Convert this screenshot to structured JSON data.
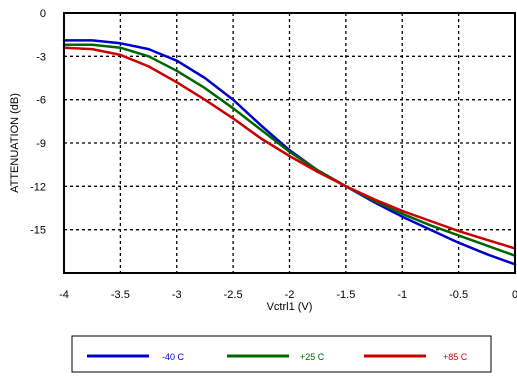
{
  "chart_data": {
    "type": "line",
    "xlabel": "Vctrl1 (V)",
    "ylabel": "ATTENUATION (dB)",
    "xlim": [
      -4,
      0
    ],
    "ylim": [
      -18,
      0
    ],
    "x_ticks": [
      "-4",
      "-3.5",
      "-3",
      "-2.5",
      "-2",
      "-1.5",
      "-1",
      "-0.5",
      "0"
    ],
    "y_ticks": [
      "0",
      "-3",
      "-6",
      "-9",
      "-12",
      "-15"
    ],
    "grid": true,
    "legend_position": "bottom",
    "series": [
      {
        "name": "-40 C",
        "color": "#0000cc",
        "x": [
          -4.0,
          -3.75,
          -3.5,
          -3.25,
          -3.0,
          -2.75,
          -2.5,
          -2.25,
          -2.0,
          -1.75,
          -1.5,
          -1.25,
          -1.0,
          -0.75,
          -0.5,
          -0.25,
          0.0
        ],
        "y": [
          -1.9,
          -1.9,
          -2.1,
          -2.5,
          -3.3,
          -4.5,
          -6.0,
          -7.8,
          -9.5,
          -10.9,
          -12.0,
          -13.1,
          -14.1,
          -15.0,
          -15.9,
          -16.7,
          -17.4
        ]
      },
      {
        "name": "+25 C",
        "color": "#006600",
        "x": [
          -4.0,
          -3.75,
          -3.5,
          -3.25,
          -3.0,
          -2.75,
          -2.5,
          -2.25,
          -2.0,
          -1.75,
          -1.5,
          -1.25,
          -1.0,
          -0.75,
          -0.5,
          -0.25,
          0.0
        ],
        "y": [
          -2.2,
          -2.2,
          -2.4,
          -3.0,
          -4.0,
          -5.2,
          -6.6,
          -8.1,
          -9.6,
          -10.9,
          -12.0,
          -13.0,
          -13.9,
          -14.7,
          -15.4,
          -16.1,
          -16.8
        ]
      },
      {
        "name": "+85 C",
        "color": "#cc0000",
        "x": [
          -4.0,
          -3.75,
          -3.5,
          -3.25,
          -3.0,
          -2.75,
          -2.5,
          -2.25,
          -2.0,
          -1.75,
          -1.5,
          -1.25,
          -1.0,
          -0.75,
          -0.5,
          -0.25,
          0.0
        ],
        "y": [
          -2.4,
          -2.5,
          -2.9,
          -3.7,
          -4.8,
          -6.0,
          -7.3,
          -8.7,
          -9.9,
          -11.0,
          -12.0,
          -12.9,
          -13.7,
          -14.4,
          -15.1,
          -15.7,
          -16.3
        ]
      }
    ]
  }
}
